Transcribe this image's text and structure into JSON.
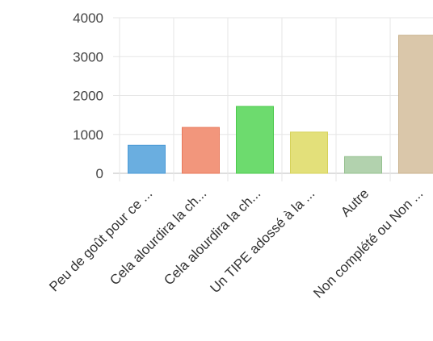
{
  "chart_data": {
    "type": "bar",
    "categories": [
      "Peu de goût pour ce ...",
      "Cela alourdira la ch...",
      "Cela alourdira la ch...",
      "Un TIPE adossé à la ...",
      "Autre",
      "Non complété ou Non ..."
    ],
    "values": [
      720,
      1180,
      1720,
      1060,
      430,
      3550
    ],
    "bar_colors": [
      "#6aaee0",
      "#f2967c",
      "#6ddb6e",
      "#e3e07a",
      "#b2d2ae",
      "#dac7aa"
    ],
    "bar_border_colors": [
      "#4a9ad6",
      "#e8785a",
      "#4cc94d",
      "#d6d25a",
      "#95c08f",
      "#c9b18c"
    ],
    "y_ticks": [
      "4000",
      "3000",
      "2000",
      "1000",
      "0"
    ],
    "ylim": [
      0,
      4000
    ],
    "grid": true,
    "legend": "none"
  }
}
